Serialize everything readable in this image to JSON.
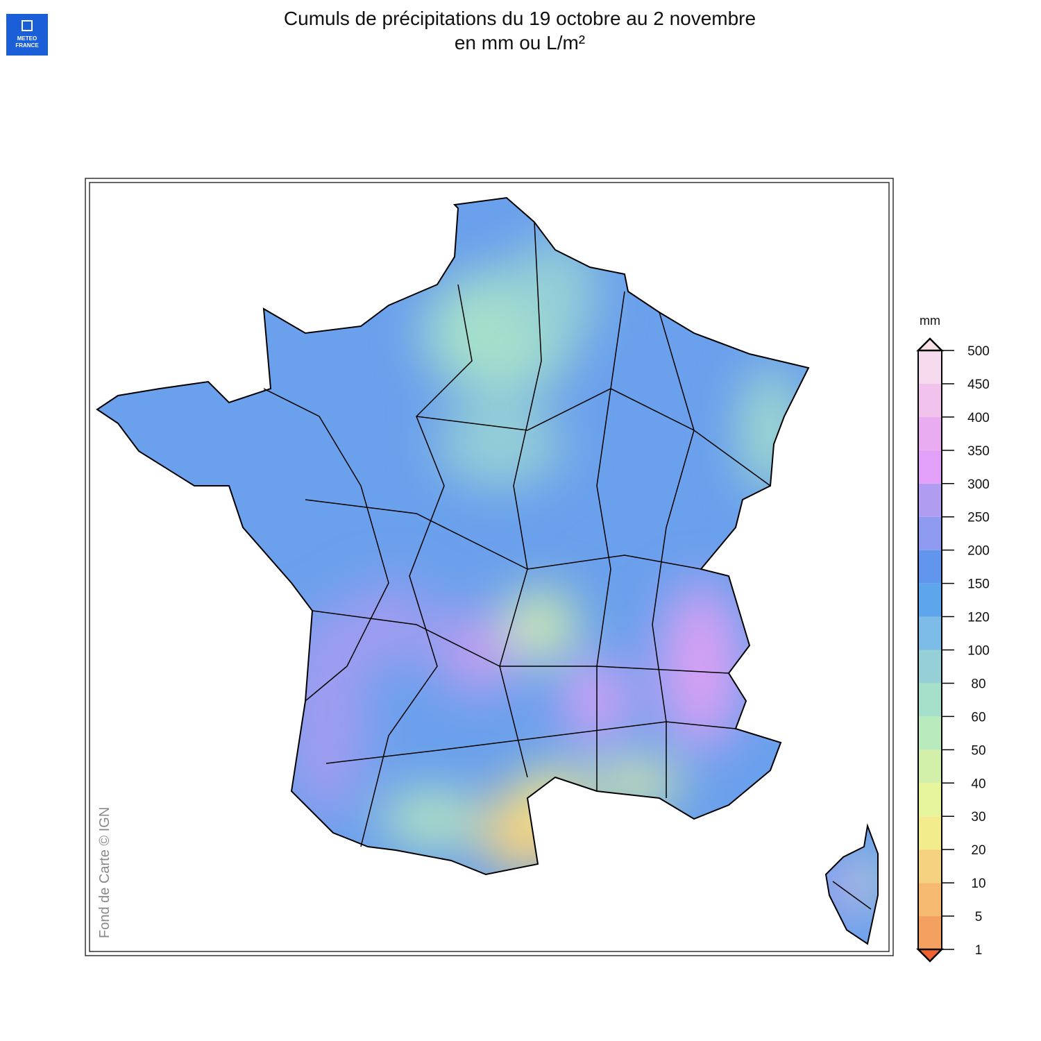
{
  "header": {
    "title": [
      "Cumuls de précipitations du 19 octobre au 2 novembre",
      "en mm ou L/m²"
    ]
  },
  "logo": {
    "lines": [
      "METEO",
      "FRANCE"
    ]
  },
  "map": {
    "credit": "Fond de Carte © IGN"
  },
  "legend": {
    "unit": "mm",
    "levels": [
      1,
      5,
      10,
      20,
      30,
      40,
      50,
      60,
      80,
      100,
      120,
      150,
      200,
      250,
      300,
      350,
      400,
      450,
      500
    ],
    "colors": [
      "#f4a060",
      "#f5ba70",
      "#f5d280",
      "#f2ec8c",
      "#e6f49c",
      "#d2f0aa",
      "#b8eabe",
      "#a6e0ca",
      "#96d0d6",
      "#7ebce8",
      "#5ea6ec",
      "#6296ec",
      "#8e9af0",
      "#b09cf0",
      "#e2a0f8",
      "#eaacf0",
      "#f0c2ec",
      "#f6daee"
    ],
    "under_color": "#f06232",
    "over_color": "#f8e2e6"
  }
}
